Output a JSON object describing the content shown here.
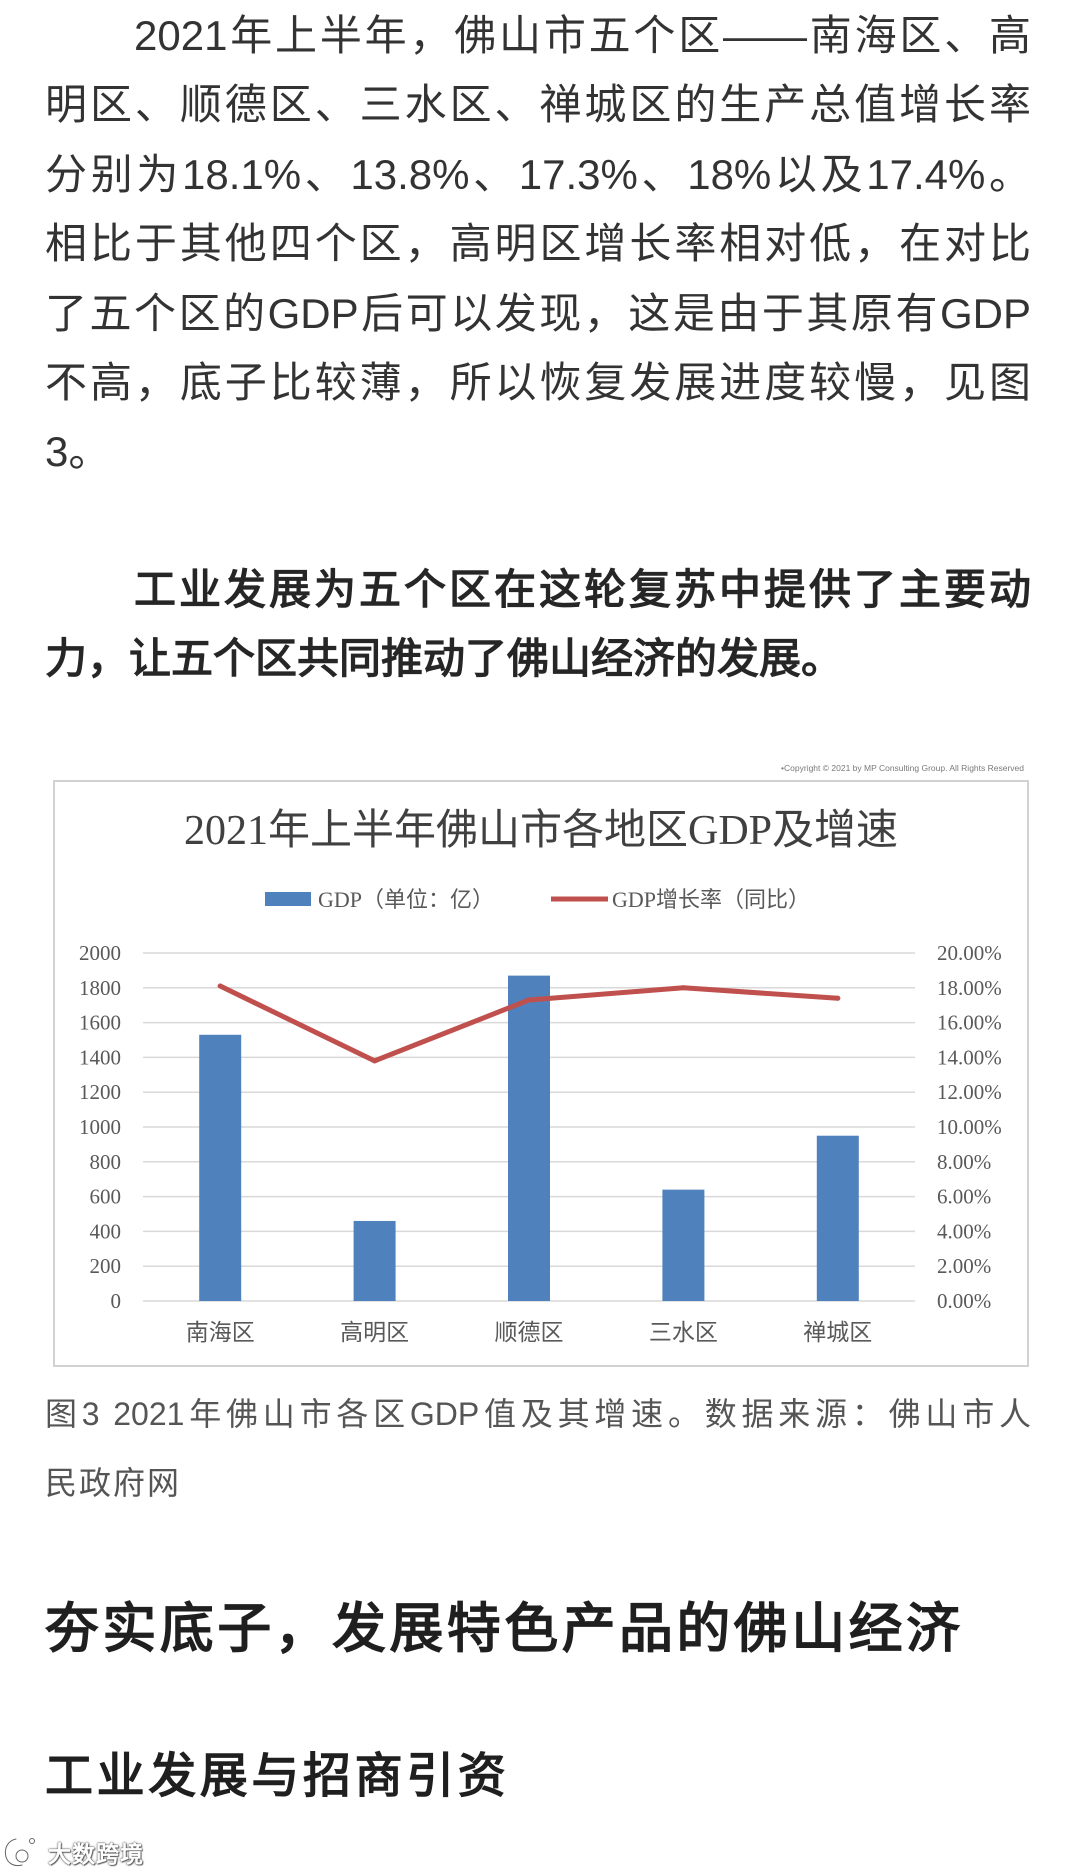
{
  "article": {
    "intro_paragraph": {
      "lines": [
        "2021年上半年，佛山市五个区——南海区、高",
        "明区、顺德区、三水区、禅城区的生产总值增长率",
        "分别为18.1%、13.8%、17.3%、18%以及17.4%。",
        "相比于其他四个区，高明区增长率相对低，在对比",
        "了五个区的GDP后可以发现，这是由于其原有GDP",
        "不高，底子比较薄，所以恢复发展进度较慢，见图",
        "3。"
      ]
    },
    "bold_paragraph": {
      "lines": [
        "工业发展为五个区在这轮复苏中提供了主要动",
        "力，让五个区共同推动了佛山经济的发展。"
      ]
    },
    "figure": {
      "copyright": "•Copyright © 2021 by MP Consulting Group. All Rights Reserved",
      "caption_lines": [
        "图3 2021年佛山市各区GDP值及其增速。数据来源：佛山市人",
        "民政府网"
      ]
    },
    "section_heading": "夯实底子，发展特色产品的佛山经济",
    "subsection_heading": "工业发展与招商引资"
  },
  "watermark": {
    "text": "大数跨境",
    "icon": "logo-icon"
  },
  "chart_data": {
    "type": "bar",
    "title": "2021年上半年佛山市各地区GDP及增速",
    "categories": [
      "南海区",
      "高明区",
      "顺德区",
      "三水区",
      "禅城区"
    ],
    "series": [
      {
        "name": "GDP（单位：亿）",
        "type": "bar",
        "axis": "left",
        "values": [
          1530,
          460,
          1870,
          640,
          950
        ],
        "color": "#4F81BD"
      },
      {
        "name": "GDP增长率（同比）",
        "type": "line",
        "axis": "right",
        "unit": "%",
        "values": [
          18.1,
          13.8,
          17.3,
          18.0,
          17.4
        ],
        "color": "#C0504D"
      }
    ],
    "y_left": {
      "min": 0,
      "max": 2000,
      "ticks": [
        "2000",
        "1800",
        "1600",
        "1400",
        "1200",
        "1000",
        "800",
        "600",
        "400",
        "200",
        "0"
      ]
    },
    "y_right": {
      "min": 0,
      "max": 20,
      "ticks": [
        "20.00%",
        "18.00%",
        "16.00%",
        "14.00%",
        "12.00%",
        "10.00%",
        "8.00%",
        "6.00%",
        "4.00%",
        "2.00%",
        "0.00%"
      ]
    },
    "grid": true,
    "legend": "top"
  }
}
